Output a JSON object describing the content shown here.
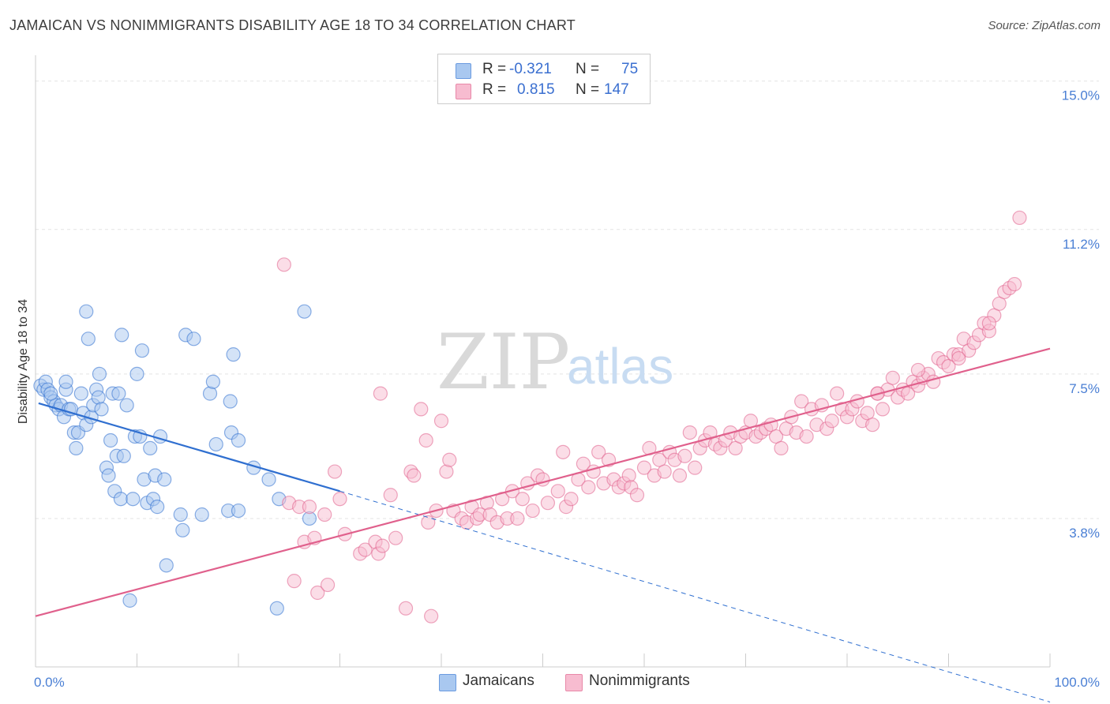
{
  "title": "JAMAICAN VS NONIMMIGRANTS DISABILITY AGE 18 TO 34 CORRELATION CHART",
  "source": "Source: ZipAtlas.com",
  "watermark": {
    "zip": "ZIP",
    "atlas": "atlas"
  },
  "legend": {
    "rows": [
      {
        "r_label": "R =",
        "r_value": "-0.321",
        "n_label": "N =",
        "n_value": "75",
        "color": "#a9c8f0",
        "border": "#6b9be0"
      },
      {
        "r_label": "R =",
        "r_value": "0.815",
        "n_label": "N =",
        "n_value": "147",
        "color": "#f7bcd0",
        "border": "#e888a8"
      }
    ]
  },
  "bottom_legend": [
    {
      "label": "Jamaicans",
      "color": "#a9c8f0",
      "border": "#6b9be0"
    },
    {
      "label": "Nonimmigrants",
      "color": "#f7bcd0",
      "border": "#e888a8"
    }
  ],
  "chart_data": {
    "type": "scatter",
    "title": "JAMAICAN VS NONIMMIGRANTS DISABILITY AGE 18 TO 34 CORRELATION CHART",
    "xlabel": "",
    "ylabel": "Disability Age 18 to 34",
    "x_tick_labels": [
      "0.0%",
      "100.0%"
    ],
    "y_tick_labels": [
      "3.8%",
      "7.5%",
      "11.2%",
      "15.0%"
    ],
    "y_ticks": [
      3.8,
      7.5,
      11.2,
      15.0
    ],
    "xlim": [
      0,
      100
    ],
    "ylim": [
      0,
      15.5
    ],
    "grid": "horizontal dashed",
    "legend_position": "top-center",
    "colors": {
      "jamaicans": "#2f6fd0",
      "nonimmigrants": "#e0608c"
    },
    "series": [
      {
        "name": "Jamaicans",
        "color": "#2f6fd0",
        "fill": "#a9c8f0",
        "R": -0.321,
        "N": 75,
        "trend": {
          "x0": 0.3,
          "y0": 6.75,
          "x1": 30,
          "y1": 4.5,
          "dashed_to_x": 100,
          "dashed_to_y": -0.9
        },
        "points": [
          [
            0.5,
            7.2
          ],
          [
            0.8,
            7.1
          ],
          [
            1.0,
            7.3
          ],
          [
            1.2,
            7.1
          ],
          [
            1.5,
            6.9
          ],
          [
            1.8,
            6.8
          ],
          [
            2.0,
            6.7
          ],
          [
            2.3,
            6.6
          ],
          [
            2.5,
            6.7
          ],
          [
            2.8,
            6.4
          ],
          [
            3.0,
            7.1
          ],
          [
            3.3,
            6.6
          ],
          [
            3.5,
            6.6
          ],
          [
            3.8,
            6.0
          ],
          [
            4.0,
            5.6
          ],
          [
            4.2,
            6.0
          ],
          [
            4.5,
            7.0
          ],
          [
            4.7,
            6.5
          ],
          [
            5.0,
            6.2
          ],
          [
            5.2,
            8.4
          ],
          [
            5.0,
            9.1
          ],
          [
            5.5,
            6.4
          ],
          [
            5.7,
            6.7
          ],
          [
            6.0,
            7.1
          ],
          [
            6.2,
            6.9
          ],
          [
            6.3,
            7.5
          ],
          [
            6.5,
            6.6
          ],
          [
            7.0,
            5.1
          ],
          [
            7.2,
            4.9
          ],
          [
            7.4,
            5.8
          ],
          [
            7.6,
            7.0
          ],
          [
            7.8,
            4.5
          ],
          [
            8.0,
            5.4
          ],
          [
            8.2,
            7.0
          ],
          [
            8.4,
            4.3
          ],
          [
            8.5,
            8.5
          ],
          [
            8.7,
            5.4
          ],
          [
            9.0,
            6.7
          ],
          [
            9.3,
            1.7
          ],
          [
            9.6,
            4.3
          ],
          [
            9.8,
            5.9
          ],
          [
            10.0,
            7.5
          ],
          [
            10.3,
            5.9
          ],
          [
            10.5,
            8.1
          ],
          [
            10.7,
            4.8
          ],
          [
            11.0,
            4.2
          ],
          [
            11.3,
            5.6
          ],
          [
            11.6,
            4.3
          ],
          [
            11.8,
            4.9
          ],
          [
            12.0,
            4.1
          ],
          [
            12.3,
            5.9
          ],
          [
            12.7,
            4.8
          ],
          [
            12.9,
            2.6
          ],
          [
            14.3,
            3.9
          ],
          [
            14.5,
            3.5
          ],
          [
            14.8,
            8.5
          ],
          [
            15.6,
            8.4
          ],
          [
            16.4,
            3.9
          ],
          [
            17.2,
            7.0
          ],
          [
            17.5,
            7.3
          ],
          [
            17.8,
            5.7
          ],
          [
            19.0,
            4.0
          ],
          [
            19.3,
            6.0
          ],
          [
            19.5,
            8.0
          ],
          [
            19.2,
            6.8
          ],
          [
            20.0,
            5.8
          ],
          [
            20.0,
            4.0
          ],
          [
            21.5,
            5.1
          ],
          [
            23.0,
            4.8
          ],
          [
            23.8,
            1.5
          ],
          [
            24.0,
            4.3
          ],
          [
            26.5,
            9.1
          ],
          [
            27.0,
            3.8
          ],
          [
            3.0,
            7.3
          ],
          [
            1.5,
            7.0
          ]
        ]
      },
      {
        "name": "Nonimmigrants",
        "color": "#e0608c",
        "fill": "#f7bcd0",
        "R": 0.815,
        "N": 147,
        "trend": {
          "x0": 0,
          "y0": 1.3,
          "x1": 100,
          "y1": 8.15
        },
        "points": [
          [
            24.5,
            10.3
          ],
          [
            25.0,
            4.2
          ],
          [
            25.5,
            2.2
          ],
          [
            26.0,
            4.1
          ],
          [
            26.5,
            3.2
          ],
          [
            27.0,
            4.1
          ],
          [
            27.5,
            3.3
          ],
          [
            27.8,
            1.9
          ],
          [
            28.5,
            3.9
          ],
          [
            28.8,
            2.1
          ],
          [
            29.5,
            5.0
          ],
          [
            30.0,
            4.3
          ],
          [
            30.5,
            3.4
          ],
          [
            32.0,
            2.9
          ],
          [
            32.5,
            3.0
          ],
          [
            33.5,
            3.2
          ],
          [
            33.8,
            2.9
          ],
          [
            34.0,
            7.0
          ],
          [
            34.2,
            3.1
          ],
          [
            35.0,
            4.4
          ],
          [
            35.5,
            3.3
          ],
          [
            36.5,
            1.5
          ],
          [
            37.0,
            5.0
          ],
          [
            37.3,
            4.9
          ],
          [
            38.0,
            6.6
          ],
          [
            38.5,
            5.8
          ],
          [
            38.7,
            3.7
          ],
          [
            39.0,
            1.3
          ],
          [
            39.5,
            4.0
          ],
          [
            40.0,
            6.3
          ],
          [
            40.5,
            5.0
          ],
          [
            40.8,
            5.3
          ],
          [
            41.2,
            4.0
          ],
          [
            42.0,
            3.8
          ],
          [
            42.5,
            3.7
          ],
          [
            43.0,
            4.1
          ],
          [
            43.5,
            3.8
          ],
          [
            43.8,
            3.9
          ],
          [
            44.5,
            4.2
          ],
          [
            44.8,
            3.9
          ],
          [
            45.5,
            3.7
          ],
          [
            46.0,
            4.3
          ],
          [
            46.5,
            3.8
          ],
          [
            47.0,
            4.5
          ],
          [
            47.5,
            3.8
          ],
          [
            48.0,
            4.3
          ],
          [
            48.5,
            4.7
          ],
          [
            49.0,
            4.0
          ],
          [
            49.5,
            4.9
          ],
          [
            50.0,
            4.8
          ],
          [
            50.5,
            4.2
          ],
          [
            51.5,
            4.5
          ],
          [
            52.0,
            5.5
          ],
          [
            52.3,
            4.1
          ],
          [
            52.8,
            4.3
          ],
          [
            53.5,
            4.8
          ],
          [
            54.0,
            5.2
          ],
          [
            54.5,
            4.6
          ],
          [
            55.0,
            5.0
          ],
          [
            55.5,
            5.5
          ],
          [
            56.0,
            4.7
          ],
          [
            56.5,
            5.3
          ],
          [
            57.0,
            4.8
          ],
          [
            57.5,
            4.6
          ],
          [
            58.0,
            4.7
          ],
          [
            58.5,
            4.9
          ],
          [
            58.7,
            4.6
          ],
          [
            59.3,
            4.4
          ],
          [
            60.0,
            5.1
          ],
          [
            60.5,
            5.6
          ],
          [
            61.0,
            4.9
          ],
          [
            61.5,
            5.3
          ],
          [
            62.0,
            5.0
          ],
          [
            62.5,
            5.5
          ],
          [
            63.0,
            5.3
          ],
          [
            63.5,
            4.9
          ],
          [
            64.0,
            5.4
          ],
          [
            64.5,
            6.0
          ],
          [
            65.0,
            5.1
          ],
          [
            65.5,
            5.6
          ],
          [
            66.0,
            5.8
          ],
          [
            66.5,
            6.0
          ],
          [
            67.0,
            5.7
          ],
          [
            67.5,
            5.6
          ],
          [
            68.0,
            5.8
          ],
          [
            68.5,
            6.0
          ],
          [
            69.0,
            5.6
          ],
          [
            69.5,
            5.9
          ],
          [
            70.0,
            6.0
          ],
          [
            70.5,
            6.3
          ],
          [
            71.0,
            5.9
          ],
          [
            71.5,
            6.0
          ],
          [
            72.0,
            6.1
          ],
          [
            72.5,
            6.2
          ],
          [
            73.0,
            5.9
          ],
          [
            73.5,
            5.6
          ],
          [
            74.0,
            6.1
          ],
          [
            74.5,
            6.4
          ],
          [
            75.0,
            6.0
          ],
          [
            75.5,
            6.8
          ],
          [
            76.0,
            5.9
          ],
          [
            76.5,
            6.6
          ],
          [
            77.0,
            6.2
          ],
          [
            77.5,
            6.7
          ],
          [
            78.0,
            6.1
          ],
          [
            78.5,
            6.3
          ],
          [
            79.0,
            7.0
          ],
          [
            79.5,
            6.6
          ],
          [
            80.0,
            6.4
          ],
          [
            80.5,
            6.6
          ],
          [
            81.0,
            6.8
          ],
          [
            81.5,
            6.3
          ],
          [
            82.0,
            6.5
          ],
          [
            82.5,
            6.2
          ],
          [
            83.0,
            7.0
          ],
          [
            83.5,
            6.6
          ],
          [
            84.0,
            7.1
          ],
          [
            84.5,
            7.4
          ],
          [
            85.0,
            6.9
          ],
          [
            85.5,
            7.1
          ],
          [
            86.0,
            7.0
          ],
          [
            86.5,
            7.3
          ],
          [
            87.0,
            7.2
          ],
          [
            87.5,
            7.4
          ],
          [
            88.0,
            7.5
          ],
          [
            88.5,
            7.3
          ],
          [
            89.0,
            7.9
          ],
          [
            89.5,
            7.8
          ],
          [
            90.0,
            7.7
          ],
          [
            90.5,
            8.0
          ],
          [
            91.0,
            8.0
          ],
          [
            91.5,
            8.4
          ],
          [
            92.0,
            8.1
          ],
          [
            92.5,
            8.3
          ],
          [
            93.0,
            8.5
          ],
          [
            93.5,
            8.8
          ],
          [
            94.0,
            8.6
          ],
          [
            94.5,
            9.0
          ],
          [
            95.0,
            9.3
          ],
          [
            95.5,
            9.6
          ],
          [
            96.0,
            9.7
          ],
          [
            96.5,
            9.8
          ],
          [
            97.0,
            11.5
          ],
          [
            83.0,
            7.0
          ],
          [
            87.0,
            7.6
          ],
          [
            91.0,
            7.9
          ],
          [
            94.0,
            8.8
          ]
        ]
      }
    ]
  }
}
